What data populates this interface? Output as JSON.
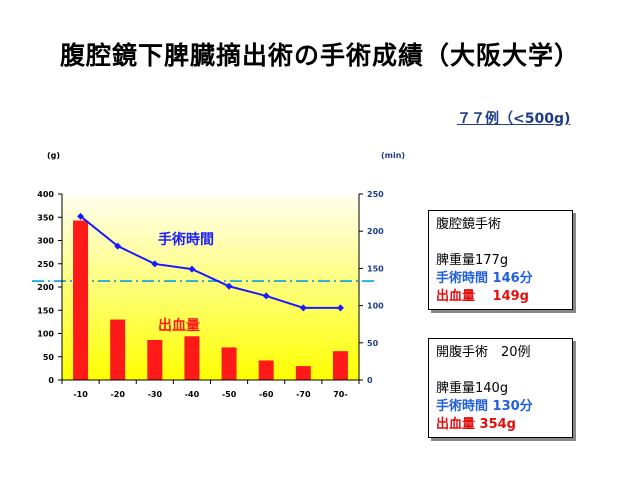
{
  "title": "腹腔鏡下脾臓摘出術の手術成績（大阪大学）",
  "subtitle": "７７例（<500g)",
  "chart_data": {
    "type": "bar",
    "categories": [
      "-10",
      "-20",
      "-30",
      "-40",
      "-50",
      "-60",
      "-70",
      "70-"
    ],
    "series": [
      {
        "name": "出血量",
        "type": "bar",
        "axis": "left",
        "values": [
          343,
          130,
          86,
          94,
          70,
          42,
          30,
          62
        ]
      },
      {
        "name": "手術時間",
        "type": "line",
        "axis": "right",
        "values": [
          220,
          180,
          156,
          149,
          126,
          113,
          97,
          97
        ]
      }
    ],
    "reference_line": {
      "axis": "right",
      "value": 133
    },
    "y_left": {
      "unit": "(g)",
      "ticks": [
        "0",
        "50",
        "100",
        "150",
        "200",
        "250",
        "300",
        "350",
        "400"
      ],
      "min": 0,
      "max": 400
    },
    "y_right": {
      "unit": "(min)",
      "ticks": [
        "0",
        "50",
        "100",
        "150",
        "200",
        "250"
      ],
      "min": 0,
      "max": 250
    },
    "colors": {
      "bar": "#ff1a1a",
      "line": "#1a1aff",
      "reference": "#00a0e0",
      "bg_top": "#fffde0",
      "bg_bottom": "#ffff00"
    }
  },
  "labels": {
    "time_label": "手術時間",
    "blood_label": "出血量"
  },
  "box1": {
    "heading": "腹腔鏡手術",
    "weight": "脾重量177g",
    "time": "手術時間 146分",
    "blood": "出血量　 149g"
  },
  "box2": {
    "heading": "開腹手術　20例",
    "weight": "脾重量140g",
    "time": "手術時間 130分",
    "blood": "出血量 354g"
  }
}
